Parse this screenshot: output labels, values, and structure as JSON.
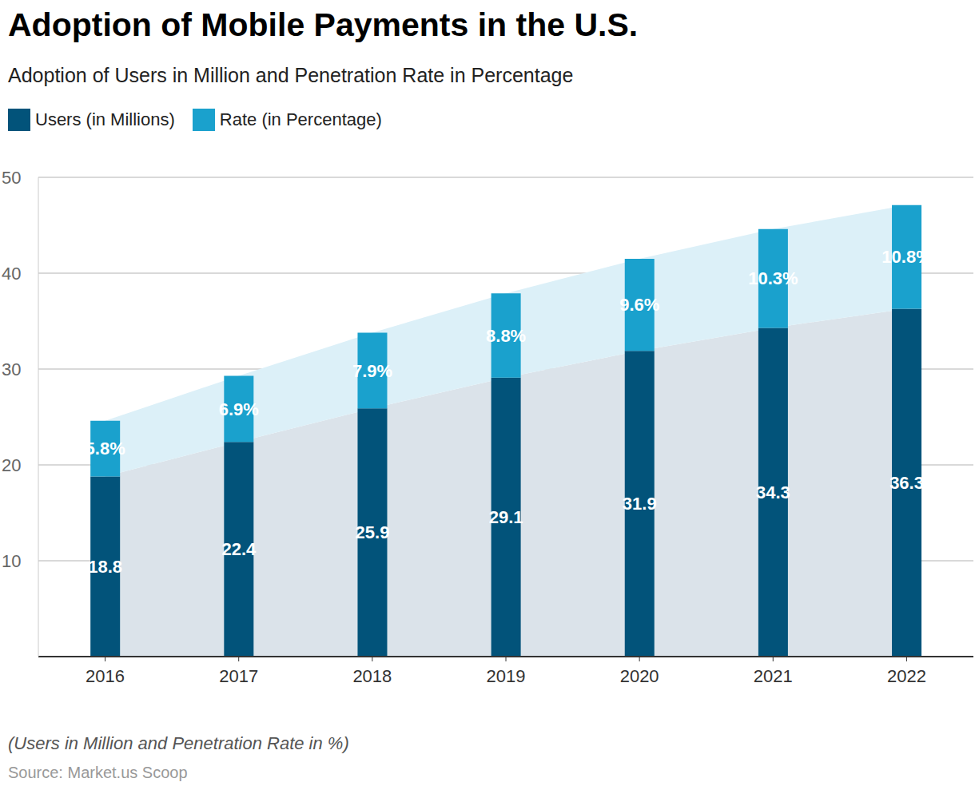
{
  "chart_data": {
    "type": "bar",
    "title": "Adoption of Mobile Payments in the U.S.",
    "subtitle": "Adoption of Users in Million and Penetration Rate in Percentage",
    "note": "(Users in Million and Penetration Rate in %)",
    "source": "Source: Market.us Scoop",
    "categories": [
      "2016",
      "2017",
      "2018",
      "2019",
      "2020",
      "2021",
      "2022"
    ],
    "series": [
      {
        "name": "Users (in Millions)",
        "color": "#02537a",
        "values": [
          18.8,
          22.4,
          25.9,
          29.1,
          31.9,
          34.3,
          36.3
        ]
      },
      {
        "name": "Rate (in Percentage)",
        "color": "#1aa1cd",
        "values": [
          5.8,
          6.9,
          7.9,
          8.8,
          9.6,
          10.3,
          10.8
        ],
        "value_labels": [
          "5.8%",
          "6.9%",
          "7.9%",
          "8.8%",
          "9.6%",
          "10.3%",
          "10.8%"
        ]
      }
    ],
    "ylim": [
      0,
      50
    ],
    "yticks": [
      10,
      20,
      30,
      40,
      50
    ],
    "grid": true,
    "stacked": true,
    "data_labels": true,
    "legend": "top-left"
  }
}
